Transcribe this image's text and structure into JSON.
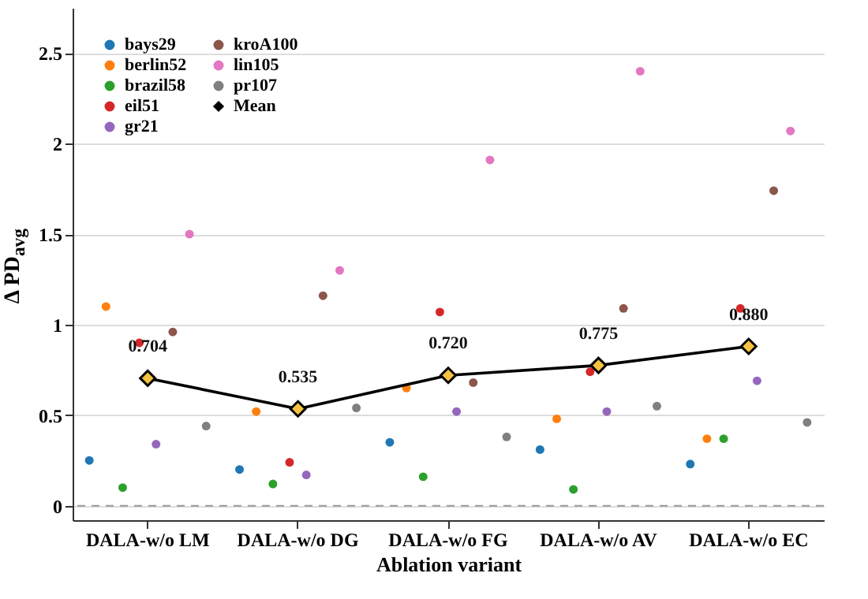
{
  "chart_data": {
    "type": "scatter",
    "xlabel": "Ablation variant",
    "ylabel": "Δ PD$_{avg}$",
    "categories": [
      "DALA-w/o LM",
      "DALA-w/o DG",
      "DALA-w/o FG",
      "DALA-w/o AV",
      "DALA-w/o EC"
    ],
    "series": [
      {
        "name": "bays29",
        "color": "#1f77b4",
        "values": [
          0.25,
          0.2,
          0.35,
          0.31,
          0.23
        ]
      },
      {
        "name": "berlin52",
        "color": "#ff7f0e",
        "values": [
          1.1,
          0.52,
          0.65,
          0.48,
          0.37
        ]
      },
      {
        "name": "brazil58",
        "color": "#2ca02c",
        "values": [
          0.1,
          0.12,
          0.16,
          0.09,
          0.37
        ]
      },
      {
        "name": "eil51",
        "color": "#d62728",
        "values": [
          0.9,
          0.24,
          1.07,
          0.74,
          1.09
        ]
      },
      {
        "name": "gr21",
        "color": "#9467bd",
        "values": [
          0.34,
          0.17,
          0.52,
          0.52,
          0.69
        ]
      },
      {
        "name": "kroA100",
        "color": "#8c564b",
        "values": [
          0.96,
          1.16,
          0.68,
          1.09,
          1.74
        ]
      },
      {
        "name": "lin105",
        "color": "#e377c2",
        "values": [
          1.5,
          1.3,
          1.91,
          2.4,
          2.07
        ]
      },
      {
        "name": "pr107",
        "color": "#7f7f7f",
        "values": [
          0.44,
          0.54,
          0.38,
          0.55,
          0.46
        ]
      },
      {
        "name": "Mean",
        "type": "line",
        "color": "#000000",
        "marker": "diamond",
        "colors": [
          "#f5c242",
          "#f5c242",
          "#f5c242",
          "#f5c242",
          "#f5c242"
        ],
        "values": [
          0.704,
          0.535,
          0.72,
          0.775,
          0.88
        ],
        "value_labels": [
          "0.704",
          "0.535",
          "0.720",
          "0.775",
          "0.880"
        ]
      }
    ],
    "ylim": [
      -0.08,
      2.75
    ],
    "yticks": [
      0,
      0.5,
      1,
      1.5,
      2,
      2.5
    ],
    "grid": "y",
    "legend": "top left",
    "marker": "circle",
    "ref_lines": [
      {
        "axis": "y",
        "value": 0,
        "color": "#999999",
        "line_style": "dashed"
      }
    ]
  }
}
